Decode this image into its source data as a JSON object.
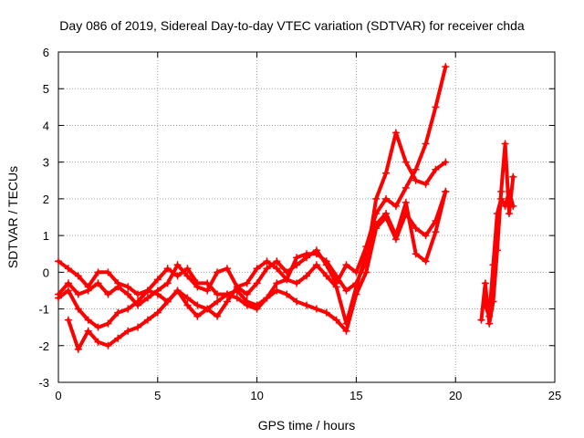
{
  "chart_data": {
    "type": "scatter",
    "title": "Day 086 of 2019, Sidereal Day-to-day VTEC variation (SDTVAR) for receiver chda",
    "xlabel": "GPS time / hours",
    "ylabel": "SDTVAR / TECUs",
    "xlim": [
      0,
      25
    ],
    "ylim": [
      -3,
      6
    ],
    "xticks": [
      "0",
      "5",
      "10",
      "15",
      "20",
      "25"
    ],
    "yticks": [
      "-3",
      "-2",
      "-1",
      "0",
      "1",
      "2",
      "3",
      "4",
      "5",
      "6"
    ],
    "grid": true,
    "marker": "+",
    "color": "#ff0000",
    "series": [
      {
        "x": [
          0,
          0.5,
          1,
          1.5,
          2,
          2.5,
          3,
          3.5,
          4,
          4.5,
          5,
          5.5,
          6,
          6.5,
          7,
          7.5,
          8,
          8.5,
          9,
          9.5,
          10,
          10.5,
          11,
          11.5,
          12,
          12.5,
          13,
          13.5,
          14,
          14.5,
          15,
          15.5,
          16,
          16.5,
          17,
          17.5,
          18,
          18.5,
          19,
          19.5
        ],
        "y": [
          -0.6,
          -0.3,
          -0.6,
          -0.5,
          -0.3,
          -0.6,
          -0.4,
          -0.6,
          -0.9,
          -0.7,
          -0.5,
          -0.3,
          0.2,
          -0.1,
          -0.4,
          -0.5,
          0.0,
          0.1,
          -0.4,
          -0.6,
          -0.3,
          0.1,
          0.3,
          0.0,
          0.2,
          0.4,
          0.6,
          0.2,
          -0.3,
          0.2,
          0.0,
          0.7,
          1.6,
          2.0,
          1.8,
          2.3,
          2.8,
          3.5,
          4.5,
          5.6
        ]
      },
      {
        "x": [
          0,
          0.5,
          1,
          1.5,
          2,
          2.5,
          3,
          3.5,
          4,
          4.5,
          5,
          5.5,
          6,
          6.5,
          7,
          7.5,
          8,
          8.5,
          9,
          9.5,
          10,
          10.5,
          11,
          11.5,
          12,
          12.5,
          13,
          13.5,
          14,
          14.5,
          15,
          15.5,
          16,
          16.5,
          17,
          17.5,
          18,
          18.5,
          19,
          19.5
        ],
        "y": [
          0.3,
          0.1,
          -0.1,
          -0.4,
          0.0,
          0.0,
          -0.3,
          -0.4,
          -0.6,
          -0.5,
          -0.2,
          0.1,
          -0.1,
          0.1,
          -0.3,
          -0.3,
          -0.6,
          -0.6,
          -0.5,
          -0.8,
          -0.9,
          -0.7,
          -0.3,
          -0.2,
          0.4,
          0.5,
          0.5,
          0.3,
          -0.1,
          -0.5,
          -0.3,
          0.3,
          2.0,
          2.7,
          3.8,
          3.0,
          2.5,
          2.4,
          2.8,
          3.0
        ]
      },
      {
        "x": [
          0,
          0.5,
          1,
          1.5,
          2,
          2.5,
          3,
          3.5,
          4,
          4.5,
          5,
          5.5,
          6,
          6.5,
          7,
          7.5,
          8,
          8.5,
          9,
          9.5,
          10,
          10.5,
          11,
          11.5,
          12,
          12.5,
          13,
          13.5,
          14,
          14.5,
          15,
          15.5,
          16,
          16.5,
          17,
          17.5,
          18,
          18.5,
          19,
          19.5
        ],
        "y": [
          -0.7,
          -0.5,
          -1.0,
          -1.3,
          -1.5,
          -1.4,
          -1.1,
          -1.0,
          -0.8,
          -0.5,
          -0.6,
          -0.8,
          -0.5,
          -0.9,
          -1.2,
          -1.0,
          -0.8,
          -0.6,
          -0.7,
          -0.9,
          -1.0,
          -0.7,
          -0.5,
          -0.6,
          -0.8,
          -0.9,
          -1.0,
          -1.1,
          -1.3,
          -1.6,
          -0.6,
          0.0,
          1.2,
          1.5,
          0.9,
          1.6,
          1.2,
          1.0,
          1.4,
          2.2
        ]
      },
      {
        "x": [
          0.5,
          1,
          1.5,
          2,
          2.5,
          3,
          3.5,
          4,
          4.5,
          5,
          5.5,
          6,
          6.5,
          7,
          7.5,
          8,
          8.5,
          9,
          9.5,
          10,
          10.5,
          11,
          11.5,
          12,
          12.5,
          13,
          13.5,
          14,
          14.5,
          15,
          15.5,
          16,
          16.5,
          17,
          17.5,
          18,
          18.5,
          19,
          19.5
        ],
        "y": [
          -1.3,
          -2.1,
          -1.6,
          -1.9,
          -2.0,
          -1.8,
          -1.6,
          -1.5,
          -1.3,
          -1.1,
          -0.8,
          -0.5,
          -0.7,
          -0.9,
          -1.0,
          -1.2,
          -0.8,
          -0.4,
          -0.3,
          0.1,
          0.3,
          0.1,
          -0.2,
          -0.3,
          -0.1,
          0.2,
          -0.1,
          -0.4,
          -1.4,
          -0.4,
          0.5,
          1.3,
          1.6,
          1.0,
          1.9,
          0.5,
          0.3,
          1.1,
          2.2
        ]
      },
      {
        "x": [
          21.3,
          21.5,
          21.7,
          21.9,
          22.1,
          22.3,
          22.5,
          22.7,
          22.9
        ],
        "y": [
          -1.3,
          -0.3,
          -1.4,
          -0.8,
          0.6,
          2.2,
          3.5,
          1.6,
          2.6
        ]
      },
      {
        "x": [
          21.5,
          21.7,
          21.9,
          22.1,
          22.3,
          22.5,
          22.7,
          22.9
        ],
        "y": [
          -0.9,
          -1.2,
          0.2,
          1.6,
          2.0,
          1.8,
          2.2,
          1.8
        ]
      }
    ]
  }
}
